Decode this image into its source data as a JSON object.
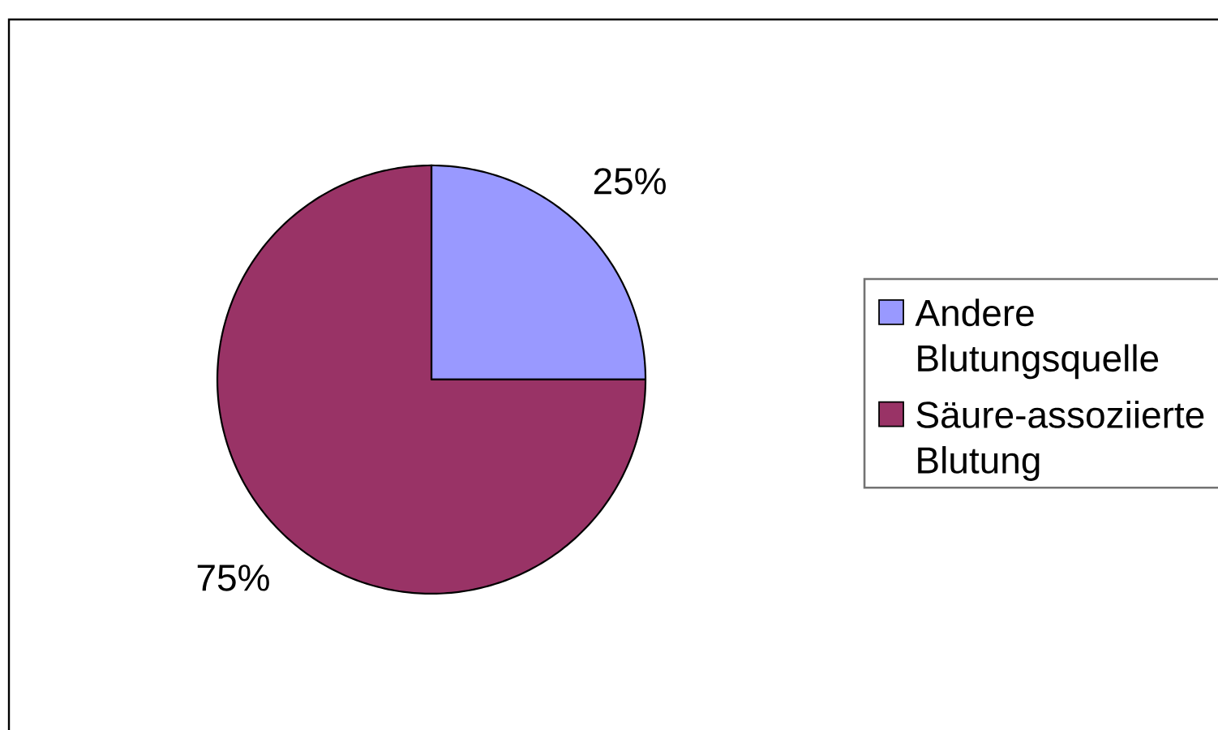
{
  "chart_data": {
    "type": "pie",
    "categories": [
      "Andere Blutungsquelle",
      "Säure-assoziierte Blutung"
    ],
    "values": [
      25,
      75
    ],
    "colors": [
      "#9999ff",
      "#993366"
    ],
    "value_labels": [
      "25%",
      "75%"
    ],
    "legend": "right"
  }
}
